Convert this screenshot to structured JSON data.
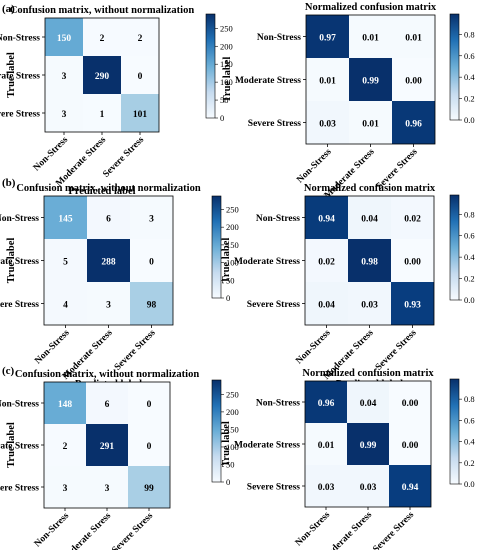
{
  "classes": [
    "Non-Stress",
    "Moderate Stress",
    "Severe Stress"
  ],
  "colorbar_raw_ticks": [
    "250",
    "200",
    "150",
    "100",
    "50",
    "0"
  ],
  "colorbar_norm_ticks": [
    "0.8",
    "0.6",
    "0.4",
    "0.2",
    "0.0"
  ],
  "colors": {
    "cmap_light": "#f7fbff",
    "cmap_dark": "#08306b",
    "text_dark": "#000000",
    "text_light": "#ffffff"
  },
  "chart_data": [
    {
      "type": "heatmap",
      "panel": "(a)",
      "title": "Confusion matrix, without normalization",
      "xlabel": "Predicted label",
      "ylabel": "True label",
      "rows": [
        "Non-Stress",
        "Moderate Stress",
        "Severe Stress"
      ],
      "cols": [
        "Non-Stress",
        "Moderate Stress",
        "Severe Stress"
      ],
      "values": [
        [
          150,
          2,
          2
        ],
        [
          3,
          290,
          0
        ],
        [
          3,
          1,
          101
        ]
      ],
      "labels": [
        [
          "150",
          "2",
          "2"
        ],
        [
          "3",
          "290",
          "0"
        ],
        [
          "3",
          "1",
          "101"
        ]
      ],
      "vmin": 0,
      "vmax": 290,
      "colorbar_ticks": [
        250,
        200,
        150,
        100,
        50,
        0
      ]
    },
    {
      "type": "heatmap",
      "panel": "",
      "title": "Normalized confusion matrix",
      "xlabel": "Predicted label",
      "ylabel": "True label",
      "rows": [
        "Non-Stress",
        "Moderate Stress",
        "Severe Stress"
      ],
      "cols": [
        "Non-Stress",
        "Moderate Stress",
        "Severe Stress"
      ],
      "values": [
        [
          0.97,
          0.01,
          0.01
        ],
        [
          0.01,
          0.99,
          0.0
        ],
        [
          0.03,
          0.01,
          0.96
        ]
      ],
      "labels": [
        [
          "0.97",
          "0.01",
          "0.01"
        ],
        [
          "0.01",
          "0.99",
          "0.00"
        ],
        [
          "0.03",
          "0.01",
          "0.96"
        ]
      ],
      "vmin": 0,
      "vmax": 0.99,
      "colorbar_ticks": [
        0.8,
        0.6,
        0.4,
        0.2,
        0.0
      ]
    },
    {
      "type": "heatmap",
      "panel": "(b)",
      "title": "Confusion matrix, without normalization",
      "xlabel": "Predicted label",
      "ylabel": "True label",
      "rows": [
        "Non-Stress",
        "Moderate Stress",
        "Severe Stress"
      ],
      "cols": [
        "Non-Stress",
        "Moderate Stress",
        "Severe Stress"
      ],
      "values": [
        [
          145,
          6,
          3
        ],
        [
          5,
          288,
          0
        ],
        [
          4,
          3,
          98
        ]
      ],
      "labels": [
        [
          "145",
          "6",
          "3"
        ],
        [
          "5",
          "288",
          "0"
        ],
        [
          "4",
          "3",
          "98"
        ]
      ],
      "vmin": 0,
      "vmax": 288,
      "colorbar_ticks": [
        250,
        200,
        150,
        100,
        50,
        0
      ]
    },
    {
      "type": "heatmap",
      "panel": "",
      "title": "Normalized confusion matrix",
      "xlabel": "Predicted label",
      "ylabel": "True label",
      "rows": [
        "Non-Stress",
        "Moderate Stress",
        "Severe Stress"
      ],
      "cols": [
        "Non-Stress",
        "Moderate Stress",
        "Severe Stress"
      ],
      "values": [
        [
          0.94,
          0.04,
          0.02
        ],
        [
          0.02,
          0.98,
          0.0
        ],
        [
          0.04,
          0.03,
          0.93
        ]
      ],
      "labels": [
        [
          "0.94",
          "0.04",
          "0.02"
        ],
        [
          "0.02",
          "0.98",
          "0.00"
        ],
        [
          "0.04",
          "0.03",
          "0.93"
        ]
      ],
      "vmin": 0,
      "vmax": 0.98,
      "colorbar_ticks": [
        0.8,
        0.6,
        0.4,
        0.2,
        0.0
      ]
    },
    {
      "type": "heatmap",
      "panel": "(c)",
      "title": "Confusion matrix, without normalization",
      "xlabel": "Predicted label",
      "ylabel": "True label",
      "rows": [
        "Non-Stress",
        "Moderate Stress",
        "Severe Stress"
      ],
      "cols": [
        "Non-Stress",
        "Moderate Stress",
        "Severe Stress"
      ],
      "values": [
        [
          148,
          6,
          0
        ],
        [
          2,
          291,
          0
        ],
        [
          3,
          3,
          99
        ]
      ],
      "labels": [
        [
          "148",
          "6",
          "0"
        ],
        [
          "2",
          "291",
          "0"
        ],
        [
          "3",
          "3",
          "99"
        ]
      ],
      "vmin": 0,
      "vmax": 291,
      "colorbar_ticks": [
        250,
        200,
        150,
        100,
        50,
        0
      ]
    },
    {
      "type": "heatmap",
      "panel": "",
      "title": "Normalized confusion matrix",
      "xlabel": "Predicted label",
      "ylabel": "True label",
      "rows": [
        "Non-Stress",
        "Moderate Stress",
        "Severe Stress"
      ],
      "cols": [
        "Non-Stress",
        "Moderate Stress",
        "Severe Stress"
      ],
      "values": [
        [
          0.96,
          0.04,
          0.0
        ],
        [
          0.01,
          0.99,
          0.0
        ],
        [
          0.03,
          0.03,
          0.94
        ]
      ],
      "labels": [
        [
          "0.96",
          "0.04",
          "0.00"
        ],
        [
          "0.01",
          "0.99",
          "0.00"
        ],
        [
          "0.03",
          "0.03",
          "0.94"
        ]
      ],
      "vmin": 0,
      "vmax": 0.99,
      "colorbar_ticks": [
        0.8,
        0.6,
        0.4,
        0.2,
        0.0
      ]
    }
  ]
}
